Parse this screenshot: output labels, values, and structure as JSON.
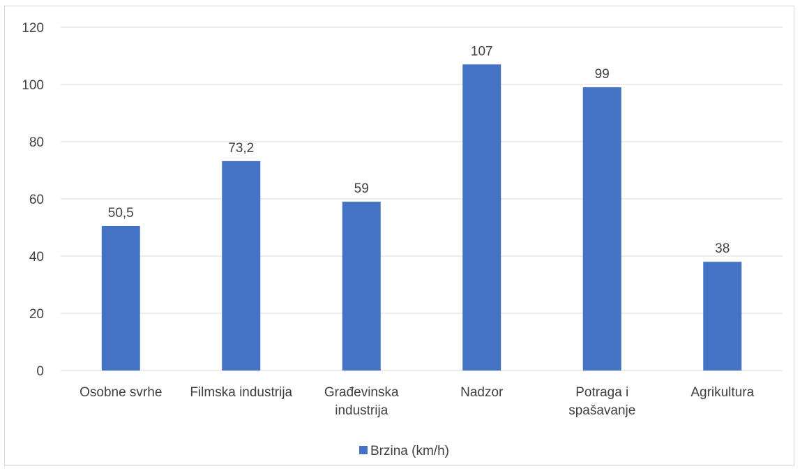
{
  "chart_data": {
    "type": "bar",
    "title": "",
    "xlabel": "",
    "ylabel": "",
    "categories": [
      [
        "Osobne svrhe"
      ],
      [
        "Filmska industrija"
      ],
      [
        "Građevinska",
        "industrija"
      ],
      [
        "Nadzor"
      ],
      [
        "Potraga i",
        "spašavanje"
      ],
      [
        "Agrikultura"
      ]
    ],
    "series": [
      {
        "name": "Brzina (km/h)",
        "values": [
          50.5,
          73.2,
          59,
          107,
          99,
          38
        ],
        "value_labels": [
          "50,5",
          "73,2",
          "59",
          "107",
          "99",
          "38"
        ],
        "color": "#4472C4"
      }
    ],
    "ylim": [
      0,
      120
    ],
    "yticks": [
      0,
      20,
      40,
      60,
      80,
      100,
      120
    ],
    "grid": true,
    "legend_position": "bottom",
    "colors": {
      "grid": "#d9d9d9",
      "axis": "#d9d9d9",
      "text": "#404040"
    }
  }
}
